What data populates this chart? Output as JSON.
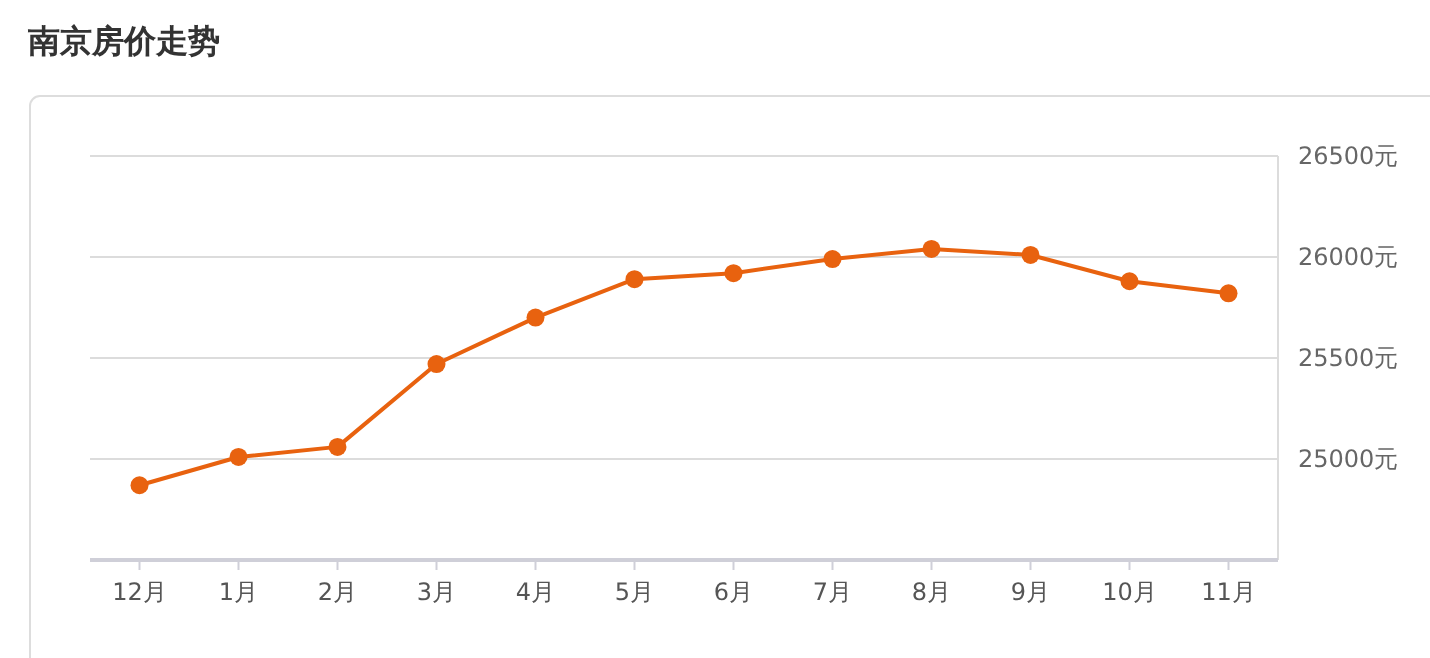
{
  "chart_data": {
    "type": "line",
    "title": "南京房价走势",
    "categories": [
      "12月",
      "1月",
      "2月",
      "3月",
      "4月",
      "5月",
      "6月",
      "7月",
      "8月",
      "9月",
      "10月",
      "11月"
    ],
    "series": [
      {
        "color": "#e8620f",
        "values": [
          24870,
          25010,
          25060,
          25470,
          25700,
          25890,
          25920,
          25990,
          26040,
          26010,
          25880,
          25820
        ]
      }
    ],
    "ylim": [
      24500,
      26500
    ],
    "yticks": [
      {
        "value": 25000,
        "label": "25000元"
      },
      {
        "value": 25500,
        "label": "25500元"
      },
      {
        "value": 26000,
        "label": "26000元"
      },
      {
        "value": 26500,
        "label": "26500元"
      }
    ],
    "grid": "y",
    "marker": "circle",
    "line_style": "solid"
  }
}
